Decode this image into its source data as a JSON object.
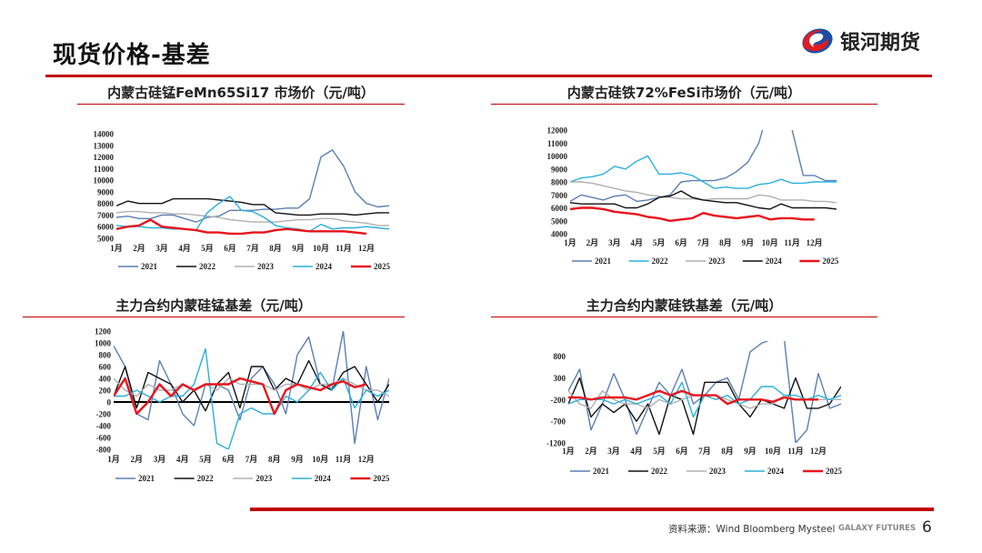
{
  "header": {
    "title": "现货价格-基差",
    "logo_text": "银河期货"
  },
  "footer": {
    "source": "资料来源：Wind Bloomberg Mysteel",
    "brand": "GALAXY FUTURES",
    "page": "6"
  },
  "colors": {
    "accent": "#c00000",
    "2021": "#5b7fb5",
    "2022": "#111111",
    "2023": "#b0b0b0",
    "2024": "#2ab0dd",
    "2025": "#e8141c"
  },
  "chart_data": [
    {
      "type": "line",
      "title": "内蒙古硅锰FeMn65Si17 市场价（元/吨）",
      "x_tick_labels": [
        "1月",
        "2月",
        "3月",
        "4月",
        "5月",
        "6月",
        "7月",
        "8月",
        "9月",
        "10月",
        "11月",
        "12月"
      ],
      "x": [
        1,
        1.5,
        2,
        2.5,
        3,
        3.5,
        4,
        4.5,
        5,
        5.5,
        6,
        6.5,
        7,
        7.5,
        8,
        8.5,
        9,
        9.5,
        10,
        10.5,
        11,
        11.5,
        12,
        12.5,
        13
      ],
      "ylim": [
        5000,
        14000
      ],
      "y_ticks": [
        5000,
        6000,
        7000,
        8000,
        9000,
        10000,
        11000,
        12000,
        13000,
        14000
      ],
      "legend": "bottom",
      "zero_line": false,
      "series": [
        {
          "name": "2021",
          "color": "#5b7fb5",
          "values": [
            6800,
            6900,
            6700,
            6700,
            7000,
            7000,
            6700,
            6400,
            6800,
            6900,
            7400,
            7400,
            7400,
            7500,
            7500,
            7600,
            7600,
            8400,
            12000,
            12600,
            11200,
            9000,
            8000,
            7700,
            7800
          ]
        },
        {
          "name": "2022",
          "color": "#111111",
          "values": [
            7800,
            8200,
            8000,
            8000,
            8000,
            8400,
            8400,
            8400,
            8400,
            8300,
            8200,
            8100,
            7900,
            7900,
            7200,
            7100,
            7000,
            7000,
            7100,
            7100,
            7100,
            7000,
            7100,
            7200,
            7200
          ]
        },
        {
          "name": "2023",
          "color": "#b0b0b0",
          "values": [
            7200,
            7300,
            7300,
            7200,
            7200,
            7100,
            7100,
            7000,
            6900,
            6800,
            6600,
            6500,
            6400,
            6400,
            6400,
            6500,
            6600,
            6600,
            6700,
            6700,
            6500,
            6400,
            6300,
            6100,
            6100
          ]
        },
        {
          "name": "2024",
          "color": "#2ab0dd",
          "values": [
            6100,
            6000,
            6000,
            5900,
            5900,
            5800,
            5800,
            5700,
            7200,
            8000,
            8600,
            7400,
            7300,
            6800,
            6100,
            5900,
            5800,
            5600,
            6200,
            5800,
            5900,
            5900,
            6000,
            5900,
            5800
          ]
        },
        {
          "name": "2025",
          "color": "#e8141c",
          "values": [
            5800,
            6000,
            6100,
            6600,
            6000,
            5900,
            5800,
            5700,
            5500,
            5500,
            5400,
            5400,
            5500,
            5500,
            5700,
            5800,
            5700,
            5600,
            5600,
            5600,
            5600,
            5500,
            5400,
            null,
            null
          ]
        }
      ]
    },
    {
      "type": "line",
      "title": "内蒙古硅铁72%FeSi市场价（元/吨）",
      "x_tick_labels": [
        "1月",
        "2月",
        "3月",
        "4月",
        "5月",
        "6月",
        "7月",
        "8月",
        "9月",
        "10月",
        "11月",
        "12月"
      ],
      "x": [
        1,
        1.5,
        2,
        2.5,
        3,
        3.5,
        4,
        4.5,
        5,
        5.5,
        6,
        6.5,
        7,
        7.5,
        8,
        8.5,
        9,
        9.5,
        10,
        10.5,
        11,
        11.5,
        12,
        12.5,
        13
      ],
      "ylim": [
        4000,
        12000
      ],
      "y_ticks": [
        4000,
        5000,
        6000,
        7000,
        8000,
        9000,
        10000,
        11000,
        12000
      ],
      "legend": "bottom",
      "zero_line": false,
      "series": [
        {
          "name": "2021",
          "color": "#5b7fb5",
          "values": [
            6500,
            7000,
            6800,
            6600,
            6900,
            7000,
            6500,
            6600,
            6800,
            7000,
            8000,
            8100,
            8100,
            8100,
            8300,
            8800,
            9500,
            11000,
            14000,
            14000,
            12000,
            8500,
            8500,
            8100,
            8100
          ]
        },
        {
          "name": "2022",
          "color": "#2ab0dd",
          "values": [
            8000,
            8300,
            8400,
            8600,
            9200,
            9000,
            9600,
            10000,
            8600,
            8600,
            8700,
            8500,
            8000,
            7500,
            7600,
            7500,
            7500,
            7800,
            7900,
            8200,
            7900,
            7900,
            8000,
            8000,
            8000
          ]
        },
        {
          "name": "2023",
          "color": "#b0b0b0",
          "values": [
            8000,
            8000,
            7900,
            7700,
            7500,
            7300,
            7200,
            7000,
            6900,
            6800,
            6700,
            6700,
            6600,
            6700,
            6700,
            6700,
            6700,
            7000,
            6900,
            6600,
            6600,
            6600,
            6500,
            6500,
            6400
          ]
        },
        {
          "name": "2024",
          "color": "#111111",
          "values": [
            6400,
            6300,
            6300,
            6300,
            6300,
            6000,
            6000,
            6300,
            6800,
            6900,
            7300,
            6800,
            6600,
            6500,
            6400,
            6400,
            6200,
            6000,
            5900,
            6300,
            6000,
            6000,
            6000,
            6000,
            5900
          ]
        },
        {
          "name": "2025",
          "color": "#e8141c",
          "values": [
            5900,
            6000,
            6000,
            5900,
            5700,
            5600,
            5500,
            5300,
            5200,
            5000,
            5100,
            5200,
            5600,
            5400,
            5300,
            5200,
            5300,
            5400,
            5100,
            5200,
            5200,
            5100,
            5100,
            null,
            null
          ]
        }
      ]
    },
    {
      "type": "line",
      "title": "主力合约内蒙硅锰基差（元/吨）",
      "x_tick_labels": [
        "1月",
        "2月",
        "3月",
        "4月",
        "5月",
        "6月",
        "7月",
        "8月",
        "9月",
        "10月",
        "11月",
        "12月"
      ],
      "x": [
        1,
        1.5,
        2,
        2.5,
        3,
        3.5,
        4,
        4.5,
        5,
        5.5,
        6,
        6.5,
        7,
        7.5,
        8,
        8.5,
        9,
        9.5,
        10,
        10.5,
        11,
        11.5,
        12,
        12.5,
        13
      ],
      "ylim": [
        -800,
        1200
      ],
      "y_ticks": [
        -800,
        -600,
        -400,
        -200,
        0,
        200,
        400,
        600,
        800,
        1000,
        1200
      ],
      "legend": "bottom",
      "zero_line": true,
      "series": [
        {
          "name": "2021",
          "color": "#5b7fb5",
          "values": [
            950,
            600,
            -200,
            -300,
            700,
            300,
            -200,
            -400,
            300,
            300,
            200,
            -300,
            400,
            600,
            300,
            -200,
            800,
            1100,
            300,
            200,
            1200,
            -700,
            600,
            -300,
            400
          ]
        },
        {
          "name": "2022",
          "color": "#111111",
          "values": [
            100,
            600,
            -100,
            500,
            400,
            300,
            0,
            200,
            -150,
            300,
            500,
            -100,
            600,
            600,
            200,
            400,
            300,
            700,
            300,
            200,
            500,
            600,
            300,
            0,
            300
          ]
        },
        {
          "name": "2023",
          "color": "#b0b0b0",
          "values": [
            400,
            200,
            100,
            300,
            200,
            200,
            300,
            200,
            300,
            200,
            400,
            300,
            300,
            300,
            200,
            300,
            300,
            200,
            300,
            300,
            400,
            300,
            200,
            200,
            100
          ]
        },
        {
          "name": "2024",
          "color": "#2ab0dd",
          "values": [
            100,
            100,
            200,
            100,
            0,
            100,
            100,
            300,
            900,
            -700,
            -800,
            -200,
            -100,
            -200,
            -200,
            100,
            0,
            200,
            500,
            200,
            400,
            -100,
            200,
            100,
            200
          ]
        },
        {
          "name": "2025",
          "color": "#e8141c",
          "values": [
            100,
            400,
            -200,
            0,
            300,
            100,
            300,
            200,
            300,
            300,
            300,
            400,
            350,
            300,
            -200,
            200,
            300,
            250,
            200,
            300,
            350,
            250,
            300,
            null,
            null
          ]
        }
      ]
    },
    {
      "type": "line",
      "title": "主力合约内蒙硅铁基差（元/吨）",
      "x_tick_labels": [
        "1月",
        "2月",
        "3月",
        "4月",
        "5月",
        "6月",
        "7月",
        "8月",
        "9月",
        "10月",
        "11月",
        "12月"
      ],
      "x": [
        1,
        1.5,
        2,
        2.5,
        3,
        3.5,
        4,
        4.5,
        5,
        5.5,
        6,
        6.5,
        7,
        7.5,
        8,
        8.5,
        9,
        9.5,
        10,
        10.5,
        11,
        11.5,
        12,
        12.5,
        13
      ],
      "ylim": [
        -1200,
        1150
      ],
      "y_ticks": [
        -1200,
        -700,
        -200,
        300,
        800
      ],
      "legend": "bottom",
      "zero_line": false,
      "series": [
        {
          "name": "2021",
          "color": "#5b7fb5",
          "values": [
            0,
            500,
            -900,
            -300,
            400,
            -200,
            -1000,
            -400,
            200,
            -100,
            500,
            -300,
            -100,
            200,
            300,
            -200,
            900,
            1100,
            1200,
            1200,
            -1200,
            -900,
            400,
            -400,
            -300
          ]
        },
        {
          "name": "2022",
          "color": "#111111",
          "values": [
            -300,
            300,
            -600,
            -300,
            -500,
            -300,
            -700,
            -300,
            -1000,
            -100,
            -200,
            -1000,
            200,
            200,
            200,
            -300,
            -600,
            -200,
            -300,
            -400,
            300,
            -400,
            -400,
            -300,
            100
          ]
        },
        {
          "name": "2023",
          "color": "#b0b0b0",
          "values": [
            0,
            -300,
            -400,
            0,
            -200,
            -300,
            -300,
            -400,
            -200,
            -300,
            -200,
            -100,
            -100,
            -100,
            -200,
            -300,
            -400,
            -300,
            -300,
            -100,
            -200,
            -200,
            -200,
            -200,
            -200
          ]
        },
        {
          "name": "2024",
          "color": "#2ab0dd",
          "values": [
            -300,
            -200,
            -200,
            -200,
            -300,
            -200,
            -300,
            -200,
            -100,
            -300,
            200,
            -600,
            -100,
            -200,
            -100,
            -300,
            -200,
            100,
            100,
            -100,
            -100,
            -200,
            -100,
            -200,
            -100
          ]
        },
        {
          "name": "2025",
          "color": "#e8141c",
          "values": [
            -150,
            -150,
            -200,
            -150,
            -150,
            -150,
            -200,
            -100,
            0,
            -100,
            0,
            -100,
            -100,
            -100,
            -300,
            -200,
            -200,
            -200,
            -250,
            -150,
            -200,
            -200,
            -200,
            null,
            null
          ]
        }
      ]
    }
  ]
}
